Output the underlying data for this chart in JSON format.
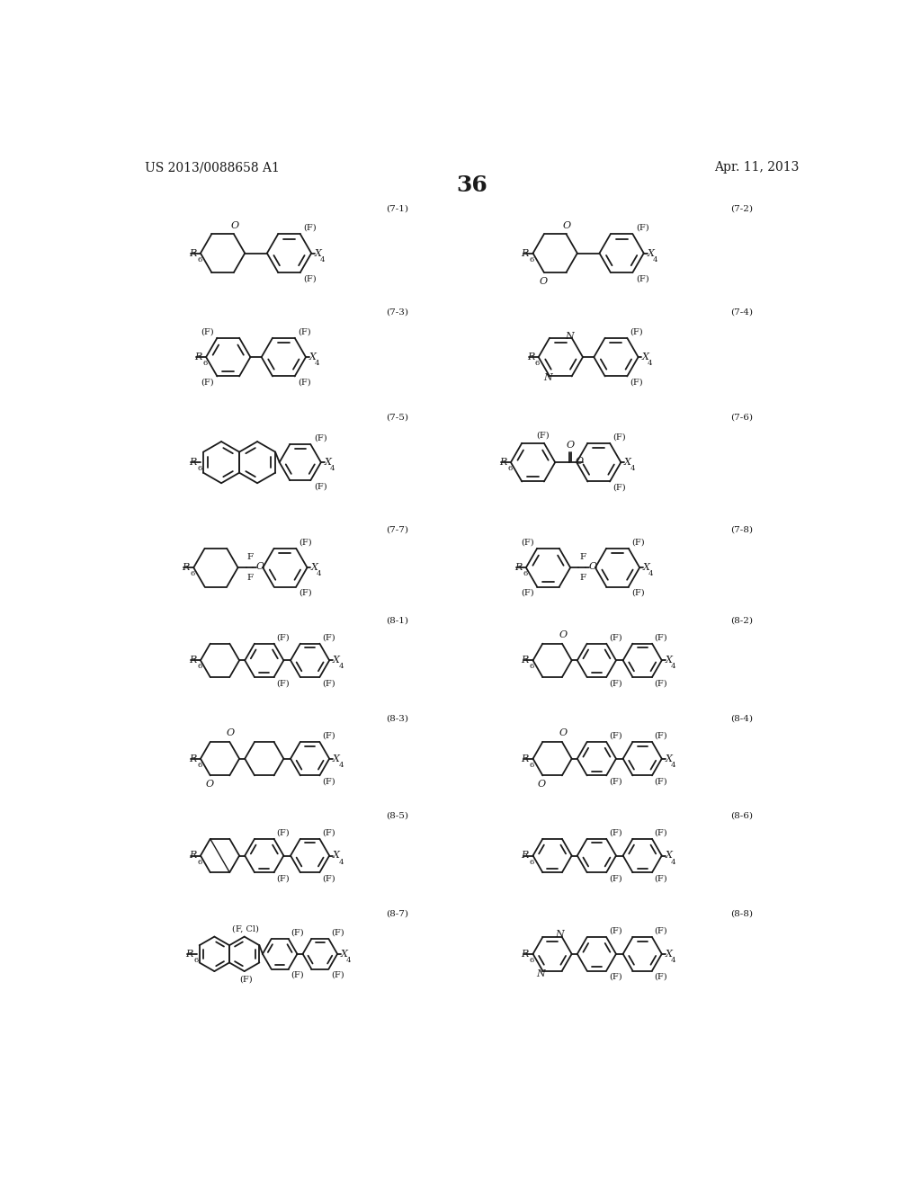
{
  "page_number": "36",
  "patent_number": "US 2013/0088658 A1",
  "patent_date": "Apr. 11, 2013",
  "background_color": "#ffffff",
  "text_color": "#1a1a1a",
  "line_color": "#1a1a1a"
}
